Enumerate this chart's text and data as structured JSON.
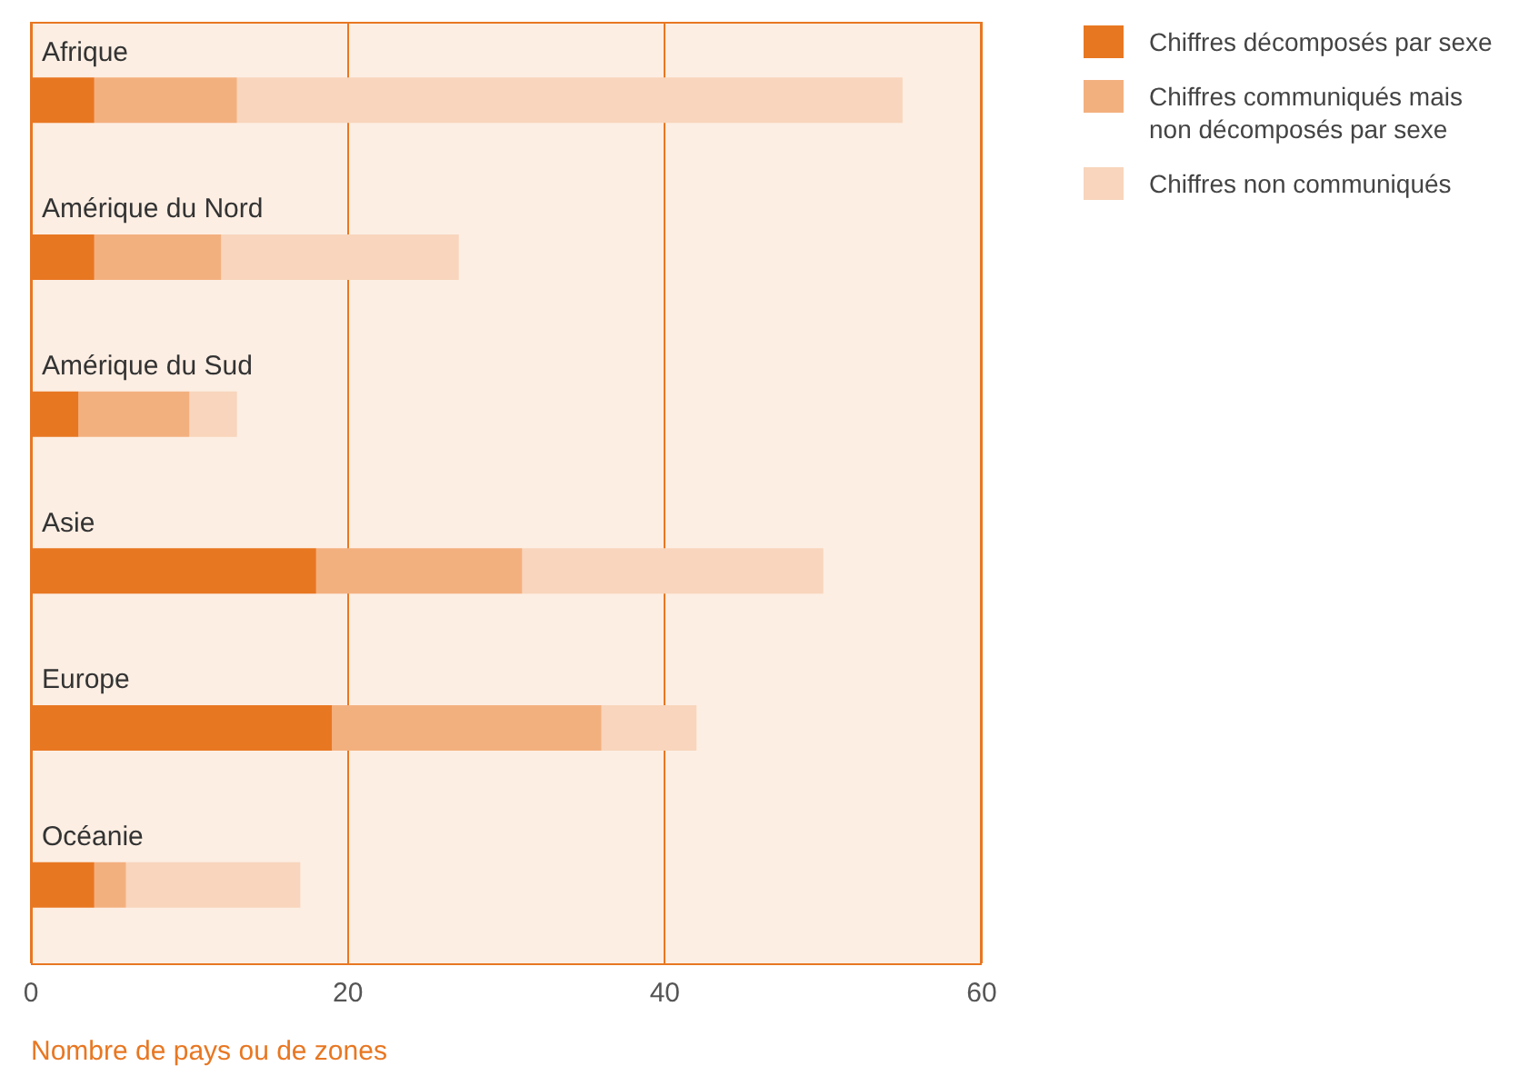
{
  "chart_data": {
    "type": "bar",
    "orientation": "horizontal",
    "stacked": true,
    "xlabel": "Nombre de pays ou de zones",
    "categories": [
      "Afrique",
      "Amérique du Nord",
      "Amérique du Sud",
      "Asie",
      "Europe",
      "Océanie"
    ],
    "series": [
      {
        "name": "Chiffres décomposés par sexe",
        "color": "#e87722",
        "values": [
          4,
          4,
          3,
          18,
          19,
          4
        ]
      },
      {
        "name": "Chiffres communiqués mais non décomposés par sexe",
        "color": "#f3b07f",
        "values": [
          9,
          8,
          7,
          13,
          17,
          2
        ]
      },
      {
        "name": "Chiffres non communiqués",
        "color": "#f8d5bc",
        "values": [
          42,
          15,
          3,
          19,
          6,
          11
        ]
      }
    ],
    "xlim": [
      0,
      60
    ],
    "xticks": [
      0,
      20,
      40,
      60
    ],
    "grid": "x",
    "legend": "right"
  }
}
